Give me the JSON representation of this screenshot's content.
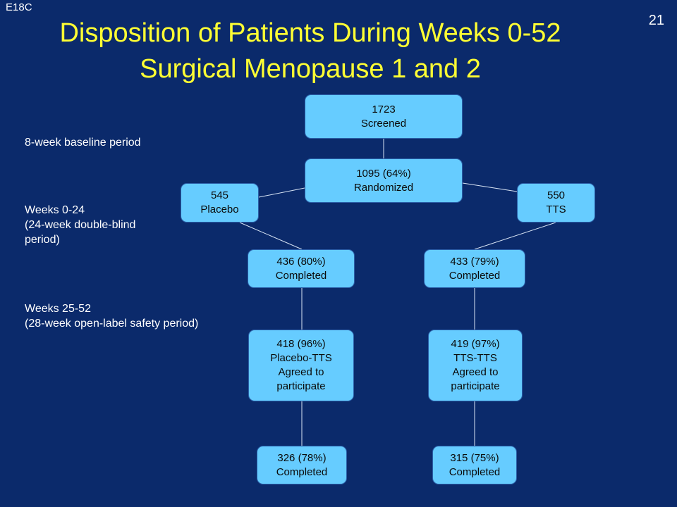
{
  "slide_id": "E18C",
  "slide_number": "21",
  "title_line1": "Disposition of Patients During Weeks 0-52",
  "title_line2": "Surgical Menopause 1 and 2",
  "periods": {
    "baseline": "8-week baseline period",
    "weeks_0_24": "Weeks 0-24\n(24-week double-blind\nperiod)",
    "weeks_25_52": "Weeks 25-52\n(28-week open-label safety period)"
  },
  "boxes": {
    "screened": "1723\nScreened",
    "randomized": "1095 (64%)\nRandomized",
    "placebo": "545\nPlacebo",
    "tts": "550\nTTS",
    "placebo_completed": "436 (80%)\nCompleted",
    "tts_completed": "433 (79%)\nCompleted",
    "placebo_tts_agreed": "418 (96%)\nPlacebo-TTS\nAgreed to\nparticipate",
    "tts_tts_agreed": "419 (97%)\nTTS-TTS\nAgreed to\nparticipate",
    "placebo_tts_completed": "326 (78%)\nCompleted",
    "tts_tts_completed": "315 (75%)\nCompleted"
  },
  "colors": {
    "background": "#0B2A6B",
    "title": "#FFFF33",
    "box_fill": "#66CCFF",
    "connector": "#D8E4F4"
  }
}
